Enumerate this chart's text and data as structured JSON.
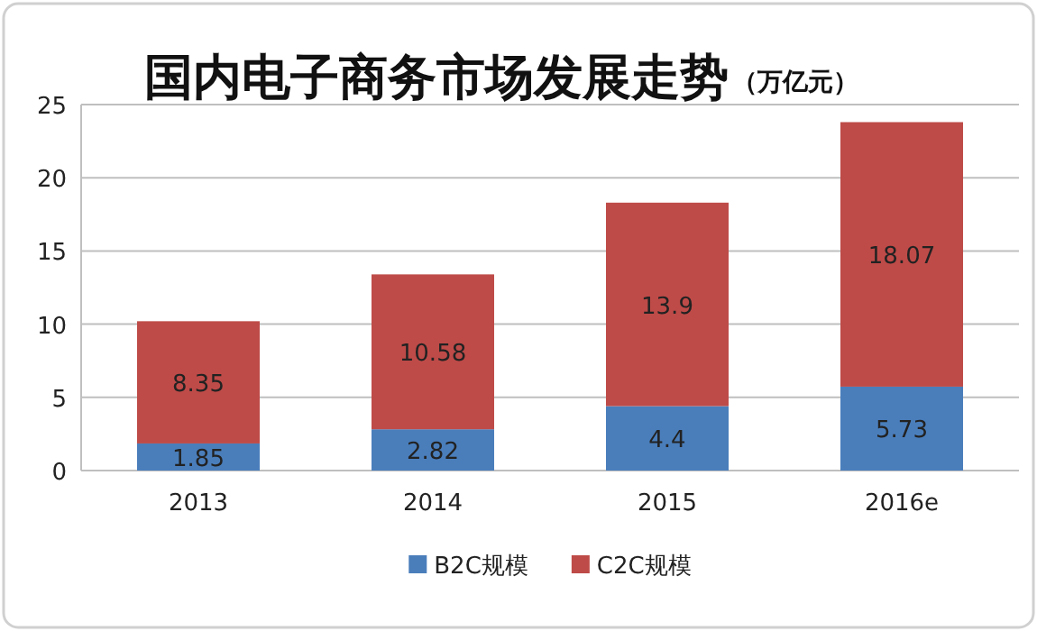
{
  "chart_data": {
    "type": "bar",
    "title": "国内电子商务市场发展走势",
    "subtitle": "（万亿元）",
    "categories": [
      "2013",
      "2014",
      "2015",
      "2016e"
    ],
    "stacked": true,
    "data_labels": true,
    "grid": "y",
    "legend": "bottom",
    "ylim": [
      0,
      25
    ],
    "yticks": [
      0,
      5,
      10,
      15,
      20,
      25
    ],
    "series": [
      {
        "name": "B2C规模",
        "color": "#4a7ebb",
        "values": [
          1.85,
          2.82,
          4.4,
          5.73
        ]
      },
      {
        "name": "C2C规模",
        "color": "#be4b48",
        "values": [
          8.35,
          10.58,
          13.9,
          18.07
        ]
      }
    ]
  }
}
